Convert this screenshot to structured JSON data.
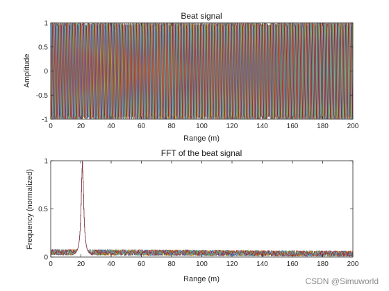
{
  "chart_data": [
    {
      "type": "line",
      "title": "Beat signal",
      "xlabel": "Range (m)",
      "ylabel": "Amplitude",
      "xlim": [
        0,
        200
      ],
      "ylim": [
        -1,
        1
      ],
      "x_ticks": [
        0,
        20,
        40,
        60,
        80,
        100,
        120,
        140,
        160,
        180,
        200
      ],
      "y_ticks": [
        -1,
        -0.5,
        0,
        0.5,
        1
      ],
      "grid": false,
      "legend": "none",
      "series_count": 7,
      "series_colors": [
        "#0072BD",
        "#D95319",
        "#EDB120",
        "#7E2F8E",
        "#77AC30",
        "#4DBEEE",
        "#A2142F"
      ],
      "signal": {
        "kind": "oscillation",
        "amplitude": 1,
        "approx_cycles_per_series": 110
      }
    },
    {
      "type": "line",
      "title": "FFT of the beat signal",
      "xlabel": "Range (m)",
      "ylabel": "Frequency (normalized)",
      "xlim": [
        0,
        200
      ],
      "ylim": [
        0,
        1
      ],
      "x_ticks": [
        0,
        20,
        40,
        60,
        80,
        100,
        120,
        140,
        160,
        180,
        200
      ],
      "y_ticks": [
        0,
        0.5,
        1
      ],
      "grid": false,
      "legend": "none",
      "series_count": 7,
      "series_colors": [
        "#0072BD",
        "#D95319",
        "#EDB120",
        "#7E2F8E",
        "#77AC30",
        "#4DBEEE",
        "#A2142F"
      ],
      "peak": {
        "x": 21,
        "y": 1
      },
      "noise_floor": {
        "from": 0.02,
        "to": 0.08
      }
    }
  ],
  "watermark": "CSDN @Simuworld"
}
